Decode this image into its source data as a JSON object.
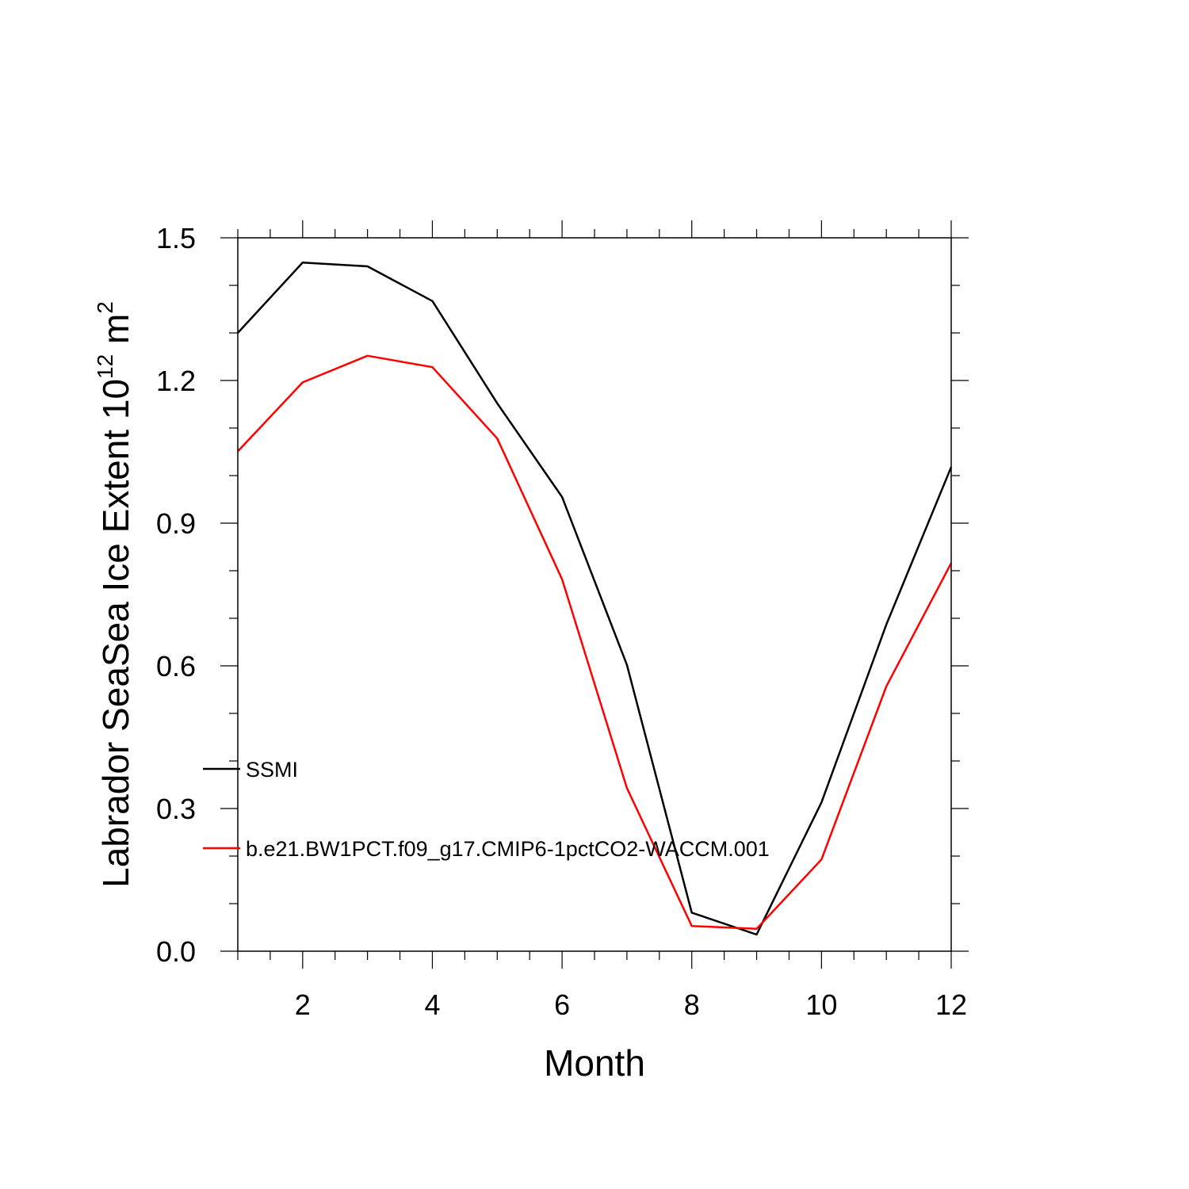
{
  "chart_data": {
    "type": "line",
    "xlabel": "Month",
    "ylabel": "Labrador SeaSea Ice Extent 10",
    "ylabel_exponent": "12",
    "ylabel_unit": " m",
    "ylabel_unit_exponent": "2",
    "xlim": [
      1,
      12
    ],
    "ylim": [
      0.0,
      1.5
    ],
    "x_ticks": [
      2,
      4,
      6,
      8,
      10,
      12
    ],
    "y_ticks": [
      "0.0",
      "0.3",
      "0.6",
      "0.9",
      "1.2",
      "1.5"
    ],
    "grid": false,
    "legend_position": "inside-left",
    "x": [
      1,
      2,
      3,
      4,
      5,
      6,
      7,
      8,
      9,
      10,
      11,
      12
    ],
    "series": [
      {
        "name": "SSMI",
        "color": "#000000",
        "values": [
          1.3,
          1.448,
          1.44,
          1.367,
          1.152,
          0.955,
          0.602,
          0.081,
          0.035,
          0.313,
          0.687,
          1.018
        ]
      },
      {
        "name": "b.e21.BW1PCT.f09_g17.CMIP6-1pctCO2-WACCM.001",
        "color": "#ff0000",
        "values": [
          1.051,
          1.196,
          1.252,
          1.228,
          1.078,
          0.782,
          0.343,
          0.053,
          0.047,
          0.193,
          0.557,
          0.816
        ]
      }
    ]
  }
}
